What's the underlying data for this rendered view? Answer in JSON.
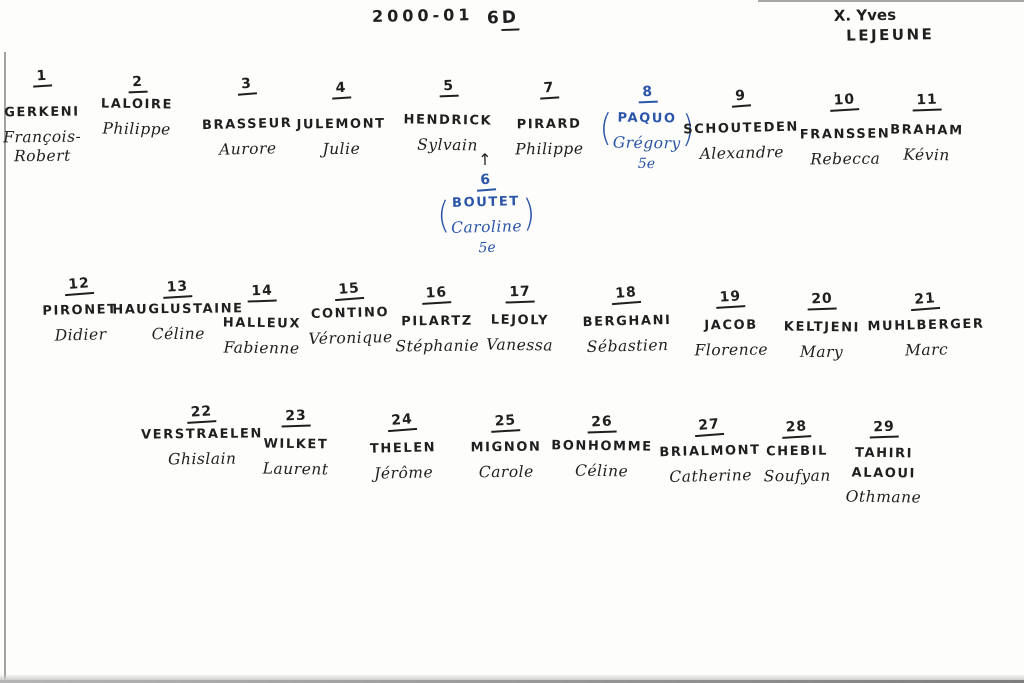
{
  "header": {
    "school_year": "2000-01",
    "class_number": "6",
    "class_letter": "D",
    "teacher_mark": "X.",
    "teacher_first_name": "Yves",
    "teacher_last_name": "LEJEUNE"
  },
  "icons": {
    "up_arrow": "↑",
    "open_paren": "(",
    "close_paren": ")"
  },
  "ink_colors": {
    "black": "#1f1f1f",
    "blue": "#2b55a8"
  },
  "students": [
    {
      "num": "1",
      "surname": "GERKENI",
      "firstname": "François-Robert"
    },
    {
      "num": "2",
      "surname": "LALOIRE",
      "firstname": "Philippe"
    },
    {
      "num": "3",
      "surname": "BRASSEUR",
      "firstname": "Aurore"
    },
    {
      "num": "4",
      "surname": "JULEMONT",
      "firstname": "Julie"
    },
    {
      "num": "5",
      "surname": "HENDRICK",
      "firstname": "Sylvain"
    },
    {
      "num": "6",
      "surname": "BOUTET",
      "firstname": "Caroline",
      "note": "5e",
      "color": "blue",
      "paren": true,
      "arrow": true
    },
    {
      "num": "7",
      "surname": "PIRARD",
      "firstname": "Philippe"
    },
    {
      "num": "8",
      "surname": "PAQUO",
      "firstname": "Grégory",
      "note": "5e",
      "color": "blue",
      "paren": true
    },
    {
      "num": "9",
      "surname": "SCHOUTEDEN",
      "firstname": "Alexandre"
    },
    {
      "num": "10",
      "surname": "FRANSSEN",
      "firstname": "Rebecca"
    },
    {
      "num": "11",
      "surname": "BRAHAM",
      "firstname": "Kévin"
    },
    {
      "num": "12",
      "surname": "PIRONET",
      "firstname": "Didier"
    },
    {
      "num": "13",
      "surname": "HAUGLUSTAINE",
      "firstname": "Céline"
    },
    {
      "num": "14",
      "surname": "HALLEUX",
      "firstname": "Fabienne"
    },
    {
      "num": "15",
      "surname": "CONTINO",
      "firstname": "Véronique"
    },
    {
      "num": "16",
      "surname": "PILARTZ",
      "firstname": "Stéphanie"
    },
    {
      "num": "17",
      "surname": "LEJOLY",
      "firstname": "Vanessa"
    },
    {
      "num": "18",
      "surname": "BERGHANI",
      "firstname": "Sébastien"
    },
    {
      "num": "19",
      "surname": "JACOB",
      "firstname": "Florence"
    },
    {
      "num": "20",
      "surname": "KELTJENI",
      "firstname": "Mary"
    },
    {
      "num": "21",
      "surname": "MUHLBERGER",
      "firstname": "Marc"
    },
    {
      "num": "22",
      "surname": "VERSTRAELEN",
      "firstname": "Ghislain"
    },
    {
      "num": "23",
      "surname": "WILKET",
      "firstname": "Laurent"
    },
    {
      "num": "24",
      "surname": "THELEN",
      "firstname": "Jérôme"
    },
    {
      "num": "25",
      "surname": "MIGNON",
      "firstname": "Carole"
    },
    {
      "num": "26",
      "surname": "BONHOMME",
      "firstname": "Céline"
    },
    {
      "num": "27",
      "surname": "BRIALMONT",
      "firstname": "Catherine"
    },
    {
      "num": "28",
      "surname": "CHEBIL",
      "firstname": "Soufyan"
    },
    {
      "num": "29",
      "surname": "TAHIRI ALAOUI",
      "firstname": "Othmane"
    }
  ]
}
